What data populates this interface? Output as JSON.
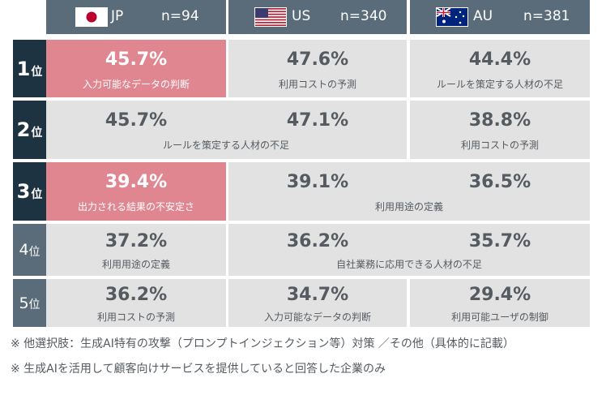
{
  "header": [
    {
      "code": "JP",
      "n": "n=94",
      "flag": "japan-flag"
    },
    {
      "code": "US",
      "n": "n=340",
      "flag": "usa-flag"
    },
    {
      "code": "AU",
      "n": "n=381",
      "flag": "australia-flag"
    }
  ],
  "ranks": [
    {
      "num": "1",
      "suffix": "位"
    },
    {
      "num": "2",
      "suffix": "位"
    },
    {
      "num": "3",
      "suffix": "位"
    },
    {
      "num": "4",
      "suffix": "位"
    },
    {
      "num": "5",
      "suffix": "位"
    }
  ],
  "rows": [
    {
      "jp": {
        "pct": "45.7%",
        "label": "入力可能なデータの判断"
      },
      "us": {
        "pct": "47.6%",
        "label": "利用コストの予測"
      },
      "au": {
        "pct": "44.4%",
        "label": "ルールを策定する人材の不足"
      }
    },
    {
      "jpus": {
        "pct_jp": "45.7%",
        "pct_us": "47.1%",
        "label": "ルールを策定する人材の不足"
      },
      "au": {
        "pct": "38.8%",
        "label": "利用コストの予測"
      }
    },
    {
      "jp": {
        "pct": "39.4%",
        "label": "出力される結果の不安定さ"
      },
      "usau": {
        "pct_us": "39.1%",
        "pct_au": "36.5%",
        "label": "利用用途の定義"
      }
    },
    {
      "jp": {
        "pct": "37.2%",
        "label": "利用用途の定義"
      },
      "usau": {
        "pct_us": "36.2%",
        "pct_au": "35.7%",
        "label": "自社業務に応用できる人材の不足"
      }
    },
    {
      "jp": {
        "pct": "36.2%",
        "label": "利用コストの予測"
      },
      "us": {
        "pct": "34.7%",
        "label": "入力可能なデータの判断"
      },
      "au": {
        "pct": "29.4%",
        "label": "利用可能ユーザの制御"
      }
    }
  ],
  "notes": [
    "※ 他選択肢：生成AI特有の攻撃（プロンプトインジェクション等）対策 ／その他（具体的に記載）",
    "※ 生成AIを活用して顧客向けサービスを提供していると回答した企業のみ"
  ],
  "colors": {
    "highlight": "#e08691",
    "cell": "#e2e2e2",
    "header": "#5a6b79",
    "rank_top": "#1e3342"
  }
}
